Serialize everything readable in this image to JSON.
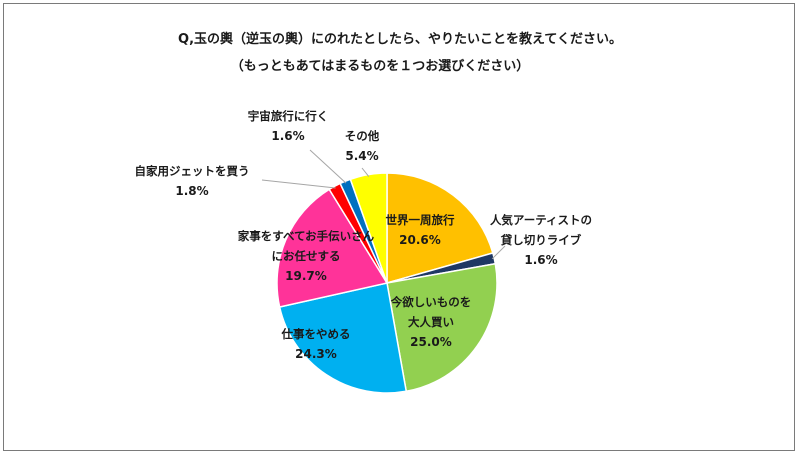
{
  "chart_data": {
    "type": "pie",
    "title": "Q,玉の輿（逆玉の輿）にのれたとしたら、やりたいことを教えてください。",
    "subtitle": "（もっともあてはまるものを１つお選びください）",
    "slices": [
      {
        "label": "世界一周旅行",
        "value": 20.6,
        "value_label": "20.6%",
        "color": "#FFC000"
      },
      {
        "label": "人気アーティストの貸し切りライブ",
        "label_lines": [
          "人気アーティストの",
          "貸し切りライブ"
        ],
        "value": 1.6,
        "value_label": "1.6%",
        "color": "#1F3864"
      },
      {
        "label": "今欲しいものを大人買い",
        "label_lines": [
          "今欲しいものを",
          "大人買い"
        ],
        "value": 25.0,
        "value_label": "25.0%",
        "color": "#92D050"
      },
      {
        "label": "仕事をやめる",
        "value": 24.3,
        "value_label": "24.3%",
        "color": "#00B0F0"
      },
      {
        "label": "家事をすべてお手伝いさんにお任せする",
        "label_lines": [
          "家事をすべてお手伝いさん",
          "にお任せする"
        ],
        "value": 19.7,
        "value_label": "19.7%",
        "color": "#FF3399"
      },
      {
        "label": "自家用ジェットを買う",
        "value": 1.8,
        "value_label": "1.8%",
        "color": "#FF0000"
      },
      {
        "label": "宇宙旅行に行く",
        "value": 1.6,
        "value_label": "1.6%",
        "color": "#0070C0"
      },
      {
        "label": "その他",
        "value": 5.4,
        "value_label": "5.4%",
        "color": "#FFFF00"
      }
    ]
  }
}
